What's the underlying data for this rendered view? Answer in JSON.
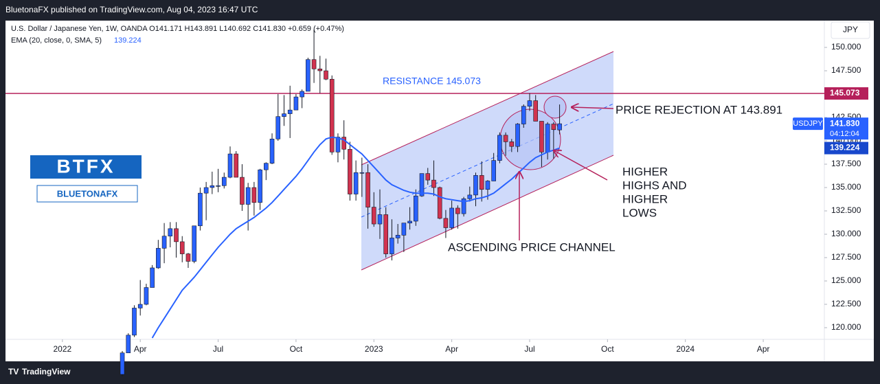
{
  "chart_data": {
    "type": "candlestick",
    "header": "BluetonaFX published on TradingView.com, Aug 04, 2023 16:47 UTC",
    "legend_line": "U.S. Dollar / Japanese Yen, 1W, OANDA  O141.171  H143.891  L140.692  C141.830  +0.659 (+0.47%)",
    "ema_label": "EMA (20, close, 0, SMA, 5)",
    "ema_value": "139.224",
    "currency": "JPY",
    "symbol": "USDJPY",
    "countdown": "04:12:04",
    "footer": "TradingView",
    "logo": {
      "big": "BTFX",
      "small": "BLUETONAFX"
    },
    "up_color": "#2962ff",
    "down_color": "#d1334f",
    "xlim": [
      -9.5,
      127.2
    ],
    "ylim": [
      118.75,
      152.87
    ],
    "xticks": [
      {
        "value": 0,
        "label": "2022"
      },
      {
        "value": 13,
        "label": "Apr"
      },
      {
        "value": 26,
        "label": "Jul"
      },
      {
        "value": 39,
        "label": "Oct"
      },
      {
        "value": 52,
        "label": "2023"
      },
      {
        "value": 65,
        "label": "Apr"
      },
      {
        "value": 78,
        "label": "Jul"
      },
      {
        "value": 91,
        "label": "Oct"
      },
      {
        "value": 104,
        "label": "2024"
      },
      {
        "value": 117,
        "label": "Apr"
      }
    ],
    "yticks": [
      {
        "value": 120,
        "label": "120.000"
      },
      {
        "value": 122.5,
        "label": "122.500"
      },
      {
        "value": 125,
        "label": "125.000"
      },
      {
        "value": 127.5,
        "label": "127.500"
      },
      {
        "value": 130,
        "label": "130.000"
      },
      {
        "value": 132.5,
        "label": "132.500"
      },
      {
        "value": 135,
        "label": "135.000"
      },
      {
        "value": 137.5,
        "label": "137.500"
      },
      {
        "value": 140,
        "label": "140.000"
      },
      {
        "value": 142.5,
        "label": "142.500"
      },
      {
        "value": 145,
        "label": "145.000"
      },
      {
        "value": 147.5,
        "label": "147.500"
      },
      {
        "value": 150,
        "label": "150.000"
      }
    ],
    "candles": {
      "x": [
        10,
        11,
        12,
        13,
        14,
        15,
        16,
        17,
        18,
        19,
        20,
        21,
        22,
        23,
        24,
        25,
        26,
        27,
        28,
        29,
        30,
        31,
        32,
        33,
        34,
        35,
        36,
        37,
        38,
        39,
        40,
        41,
        42,
        43,
        44,
        45,
        46,
        47,
        48,
        49,
        50,
        51,
        52,
        53,
        54,
        55,
        56,
        57,
        58,
        59,
        60,
        61,
        62,
        63,
        64,
        65,
        66,
        67,
        68,
        69,
        70,
        71,
        72,
        73,
        74,
        75,
        76,
        77,
        78,
        79,
        80,
        81,
        82,
        83
      ],
      "open": [
        115.0,
        117.3,
        119.2,
        122.1,
        122.5,
        124.3,
        126.4,
        128.5,
        129.8,
        130.6,
        129.2,
        127.9,
        127.1,
        130.9,
        134.4,
        135.0,
        135.2,
        135.2,
        136.1,
        138.6,
        136.1,
        133.2,
        135.0,
        133.4,
        136.9,
        137.6,
        140.2,
        142.6,
        142.9,
        143.3,
        144.7,
        145.3,
        148.7,
        147.7,
        147.5,
        146.6,
        138.8,
        140.4,
        139.1,
        134.3,
        136.6,
        136.6,
        132.9,
        131.1,
        132.1,
        127.9,
        129.6,
        129.9,
        131.2,
        131.4,
        134.1,
        136.5,
        135.8,
        135.0,
        131.7,
        130.7,
        132.8,
        132.2,
        133.8,
        134.2,
        136.3,
        134.8,
        135.7,
        137.9,
        140.6,
        139.9,
        139.4,
        141.8,
        143.7,
        144.3,
        142.1,
        138.8,
        141.8,
        141.171
      ],
      "high": [
        117.5,
        119.4,
        122.4,
        125.1,
        124.7,
        126.7,
        129.4,
        131.2,
        131.3,
        131.3,
        129.8,
        128.0,
        130.9,
        135.0,
        135.6,
        136.7,
        137.0,
        136.6,
        139.4,
        138.9,
        137.5,
        135.5,
        135.6,
        137.0,
        137.7,
        140.8,
        145.0,
        144.9,
        145.9,
        145.0,
        145.5,
        148.9,
        151.9,
        149.1,
        148.8,
        147.0,
        140.8,
        142.2,
        139.9,
        137.9,
        138.2,
        137.5,
        134.5,
        134.8,
        132.9,
        131.6,
        131.1,
        131.2,
        132.9,
        134.8,
        136.5,
        137.1,
        137.9,
        135.1,
        132.6,
        133.6,
        133.1,
        134.0,
        135.1,
        136.6,
        137.8,
        135.8,
        138.7,
        140.9,
        140.9,
        140.2,
        141.9,
        143.9,
        145.1,
        144.9,
        142.1,
        142.0,
        142.0,
        143.891
      ],
      "low": [
        114.8,
        117.3,
        119.0,
        121.3,
        122.4,
        124.3,
        126.3,
        126.9,
        128.6,
        127.5,
        127.0,
        126.4,
        126.9,
        130.4,
        131.5,
        134.3,
        134.5,
        134.9,
        136.0,
        136.7,
        132.5,
        130.4,
        132.0,
        132.6,
        135.8,
        137.5,
        140.0,
        141.6,
        140.3,
        143.3,
        143.5,
        145.3,
        146.2,
        145.1,
        146.5,
        138.5,
        137.7,
        138.0,
        133.6,
        133.6,
        134.0,
        130.6,
        130.8,
        129.5,
        127.5,
        127.2,
        129.0,
        128.1,
        130.5,
        130.9,
        134.0,
        135.3,
        134.1,
        131.6,
        129.6,
        130.5,
        130.6,
        131.9,
        133.5,
        133.0,
        133.5,
        133.7,
        135.7,
        137.6,
        138.4,
        138.8,
        138.8,
        141.4,
        143.2,
        142.1,
        137.2,
        138.0,
        138.1,
        140.692
      ],
      "close": [
        117.3,
        119.2,
        122.1,
        122.5,
        124.3,
        126.4,
        128.5,
        129.8,
        130.6,
        129.2,
        127.9,
        127.1,
        130.9,
        134.4,
        135.0,
        135.2,
        135.2,
        136.1,
        138.6,
        136.1,
        133.2,
        135.0,
        133.4,
        136.9,
        137.6,
        140.2,
        142.6,
        142.9,
        143.3,
        144.7,
        145.3,
        148.7,
        147.7,
        147.5,
        146.6,
        138.8,
        140.4,
        139.1,
        134.3,
        136.6,
        136.6,
        132.9,
        131.1,
        132.1,
        127.9,
        129.6,
        129.9,
        131.2,
        131.4,
        134.1,
        136.5,
        135.8,
        135.0,
        131.7,
        130.7,
        132.8,
        132.2,
        133.8,
        134.2,
        136.3,
        134.8,
        135.7,
        137.9,
        140.6,
        139.9,
        139.4,
        141.8,
        143.7,
        144.3,
        142.1,
        138.8,
        141.8,
        141.2,
        141.83
      ]
    },
    "ema": {
      "name": "EMA",
      "color": "#2962ff",
      "x": [
        15,
        16,
        17,
        18,
        19,
        20,
        21,
        22,
        23,
        24,
        25,
        26,
        27,
        28,
        29,
        30,
        31,
        32,
        33,
        34,
        35,
        36,
        37,
        38,
        39,
        40,
        41,
        42,
        43,
        44,
        45,
        46,
        47,
        48,
        49,
        50,
        51,
        52,
        53,
        54,
        55,
        56,
        57,
        58,
        59,
        60,
        61,
        62,
        63,
        64,
        65,
        66,
        67,
        68,
        69,
        70,
        71,
        72,
        73,
        74,
        75,
        76,
        77,
        78,
        79,
        80,
        81,
        82,
        83
      ],
      "values": [
        118.9,
        120.0,
        121.0,
        122.0,
        123.0,
        124.0,
        124.7,
        125.4,
        126.2,
        127.0,
        127.8,
        128.6,
        129.3,
        130.0,
        130.6,
        131.0,
        131.4,
        131.8,
        132.3,
        132.8,
        133.4,
        134.1,
        134.8,
        135.5,
        136.2,
        137.0,
        137.9,
        138.8,
        139.6,
        140.2,
        140.4,
        140.3,
        140.1,
        139.6,
        139.1,
        138.6,
        137.9,
        137.2,
        136.5,
        135.8,
        135.3,
        135.0,
        134.7,
        134.5,
        134.4,
        134.4,
        134.4,
        134.3,
        134.0,
        133.8,
        133.7,
        133.6,
        133.5,
        133.6,
        133.8,
        133.9,
        134.1,
        134.4,
        134.9,
        135.4,
        135.9,
        136.5,
        137.1,
        137.7,
        138.2,
        138.5,
        138.8,
        139.0,
        139.224
      ]
    },
    "resistance": {
      "value": 145.073,
      "label": "145.073",
      "color": "#b5205a"
    },
    "last_price": {
      "value": 141.83,
      "label": "141.830"
    },
    "ema_last": {
      "value": 139.224,
      "label": "139.224"
    },
    "annotations": {
      "resistance": "RESISTANCE 145.073",
      "rejection": "PRICE REJECTION AT 143.891",
      "higher": [
        "HIGHER",
        "HIGHS AND",
        "HIGHER",
        "LOWS"
      ],
      "channel": "ASCENDING PRICE CHANNEL"
    }
  }
}
